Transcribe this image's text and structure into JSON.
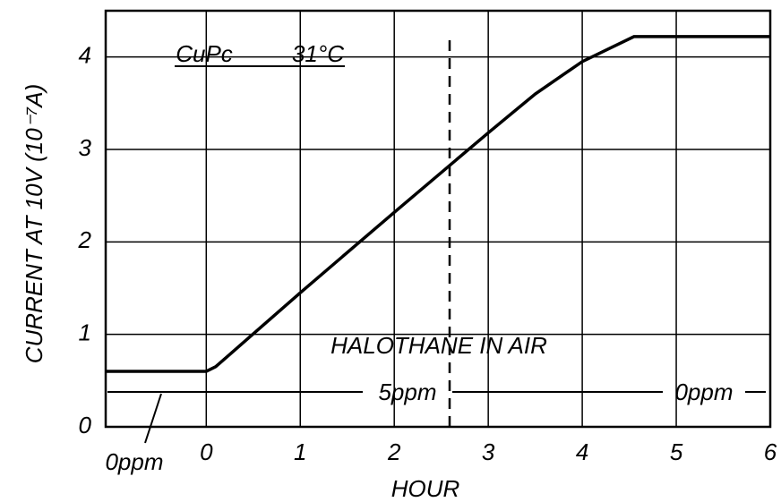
{
  "chart_data": {
    "type": "line",
    "x_label": "HOUR",
    "y_label": "CURRENT AT 10V (10⁻⁷A)",
    "x": [
      -1.07,
      0,
      0.1,
      1,
      2,
      3,
      3.5,
      4,
      4.55,
      6
    ],
    "series": [
      {
        "color": "#000000",
        "values": [
          0.6,
          0.6,
          0.65,
          1.45,
          2.32,
          3.18,
          3.6,
          3.95,
          4.22,
          4.22
        ]
      }
    ],
    "xlim": [
      -1.07,
      6
    ],
    "xticks": [
      0,
      1,
      2,
      3,
      4,
      5,
      6
    ],
    "ylim": [
      0,
      4.5
    ],
    "yticks": [
      0,
      1,
      2,
      3,
      4
    ],
    "grid": true,
    "annotations": {
      "material": "CuPc",
      "temperature": "31°C",
      "gas": "HALOTHANE IN AIR",
      "conc_on": "5ppm",
      "conc_off": "0ppm",
      "conc_before": "0ppm"
    }
  }
}
